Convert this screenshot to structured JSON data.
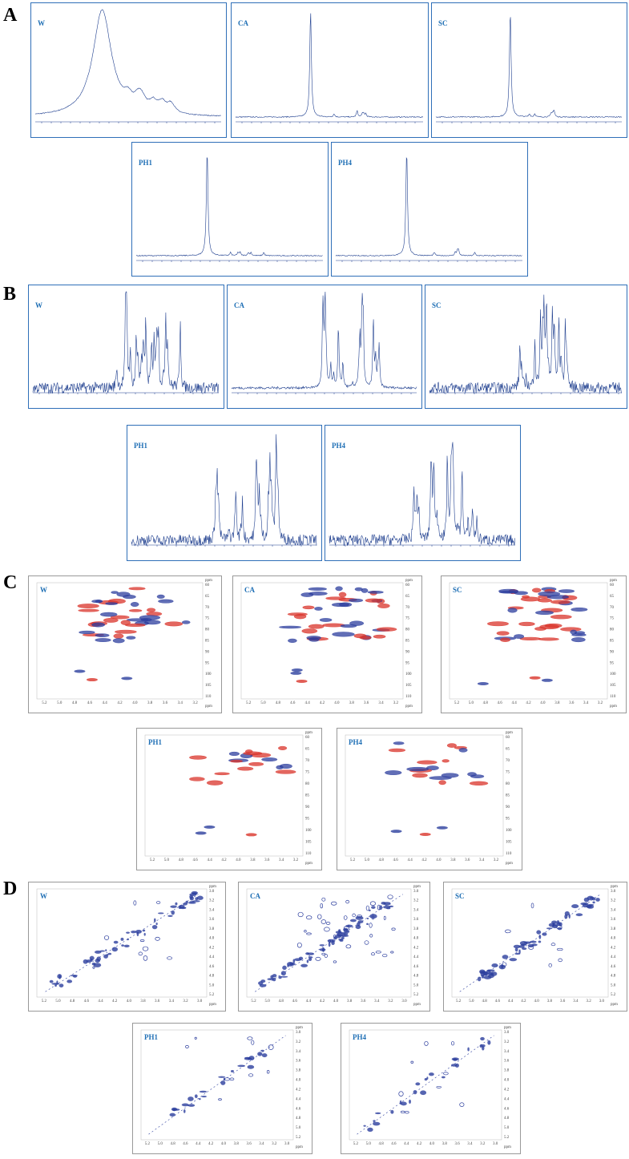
{
  "panels": [
    {
      "label": "A",
      "plots": [
        {
          "name": "W"
        },
        {
          "name": "CA"
        },
        {
          "name": "SC"
        },
        {
          "name": "PH1"
        },
        {
          "name": "PH4"
        }
      ]
    },
    {
      "label": "B",
      "plots": [
        {
          "name": "W"
        },
        {
          "name": "CA"
        },
        {
          "name": "SC"
        },
        {
          "name": "PH1"
        },
        {
          "name": "PH4"
        }
      ]
    },
    {
      "label": "C",
      "unit": "ppm",
      "x_ticks": [
        "5.2",
        "5.0",
        "4.8",
        "4.6",
        "4.4",
        "4.2",
        "4.0",
        "3.8",
        "3.6",
        "3.4",
        "3.2"
      ],
      "y_ticks": [
        "60",
        "65",
        "70",
        "75",
        "80",
        "85",
        "90",
        "95",
        "100",
        "105",
        "110"
      ],
      "plots": [
        {
          "name": "W"
        },
        {
          "name": "CA"
        },
        {
          "name": "SC"
        },
        {
          "name": "PH1"
        },
        {
          "name": "PH4"
        }
      ]
    },
    {
      "label": "D",
      "unit": "ppm",
      "x_ticks": [
        "5.2",
        "5.0",
        "4.8",
        "4.6",
        "4.4",
        "4.2",
        "4.0",
        "3.8",
        "3.6",
        "3.4",
        "3.2",
        "3.0"
      ],
      "y_ticks": [
        "3.0",
        "3.2",
        "3.4",
        "3.6",
        "3.8",
        "4.0",
        "4.2",
        "4.4",
        "4.6",
        "4.8",
        "5.0",
        "5.2"
      ],
      "plots": [
        {
          "name": "W"
        },
        {
          "name": "CA"
        },
        {
          "name": "SC"
        },
        {
          "name": "PH1"
        },
        {
          "name": "PH4"
        }
      ]
    }
  ]
}
